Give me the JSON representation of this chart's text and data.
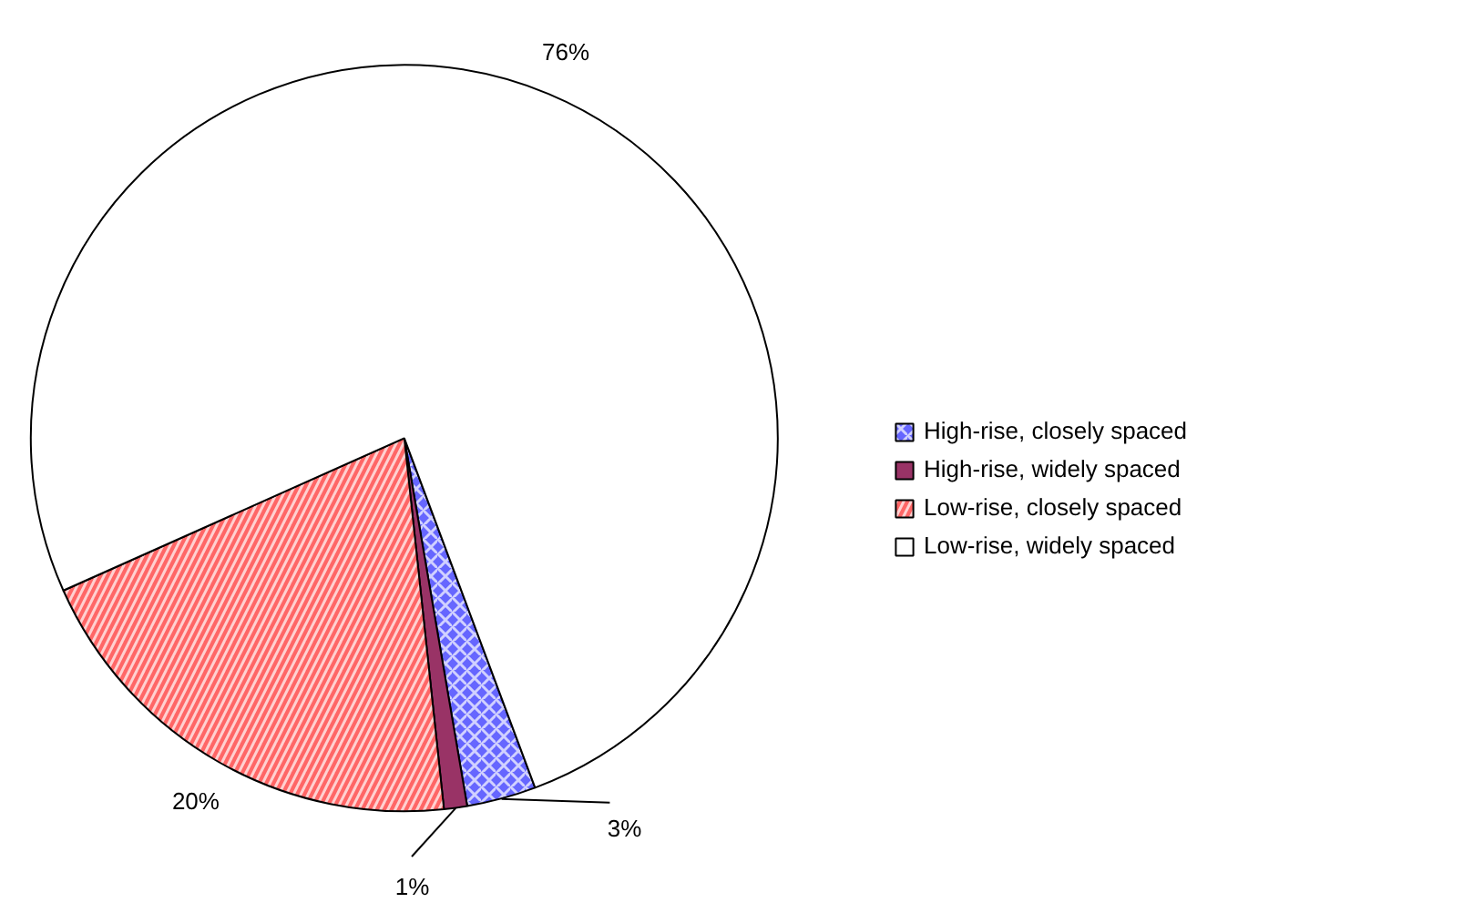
{
  "chart_data": {
    "type": "pie",
    "categories": [
      "High-rise, closely spaced",
      "High-rise, widely spaced",
      "Low-rise, closely spaced",
      "Low-rise, widely spaced"
    ],
    "values": [
      3,
      1,
      20,
      76
    ],
    "value_labels": [
      "3%",
      "1%",
      "20%",
      "76%"
    ],
    "colors": [
      "#6666ff",
      "#993366",
      "#ff6666",
      "#ffffff"
    ],
    "legend": "right"
  }
}
